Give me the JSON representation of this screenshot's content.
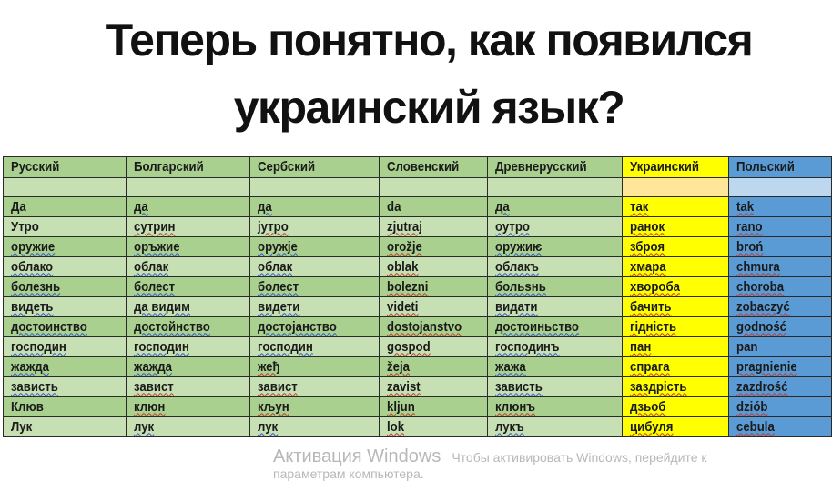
{
  "title": {
    "line1": "Теперь понятно, как появился",
    "line2": "украинский язык?"
  },
  "colors": {
    "green_dark": "#a9d08e",
    "green_light": "#c6e0b4",
    "yellow": "#ffff00",
    "yellow_light": "#ffe699",
    "blue": "#5b9bd5",
    "blue_light": "#bdd7ee"
  },
  "table": {
    "headers": [
      "Русский",
      "Болгарский",
      "Сербский",
      "Словенский",
      "Древнерусский",
      "Украинский",
      "Польский"
    ],
    "rows": [
      [
        "Да",
        "да",
        "да",
        "da",
        "да",
        "так",
        "tak"
      ],
      [
        "Утро",
        "сутрин",
        "јутро",
        "zjutraj",
        "оутро",
        "ранок",
        "rano"
      ],
      [
        "оружие",
        "оръжие",
        "оружје",
        "orožje",
        "оружиѥ",
        "зброя",
        "broń"
      ],
      [
        "облако",
        "облак",
        "облак",
        "oblak",
        "облакъ",
        "хмара",
        "chmura"
      ],
      [
        "болезнь",
        "болест",
        "болест",
        "bolezni",
        "больѕнь",
        "хвороба",
        "choroba"
      ],
      [
        "видеть",
        "да видим",
        "видети",
        "videti",
        "видати",
        "бачить",
        "zobaczyć"
      ],
      [
        "достоинство",
        "достойнство",
        "достојанство",
        "dostojanstvo",
        "достоиньство",
        "гідність",
        "godność"
      ],
      [
        "господин",
        "господин",
        "господин",
        "gospod",
        "господинъ",
        "пан",
        "pan"
      ],
      [
        "жажда",
        "жажда",
        "жеђ",
        "žeja",
        "жажа",
        "спрага",
        "pragnienie"
      ],
      [
        "зависть",
        "завист",
        "завист",
        "zavist",
        "зависть",
        "заздрість",
        "zazdrość"
      ],
      [
        "Клюв",
        "клюн",
        "кљун",
        "kljun",
        "клюнъ",
        "дзьоб",
        "dziób"
      ],
      [
        "Лук",
        "лук",
        "лук",
        "lok",
        "лукъ",
        "цибуля",
        "cebula"
      ]
    ]
  },
  "watermark": {
    "line1": "Активация Windows",
    "line2": "Чтобы активировать Windows, перейдите к",
    "line3": "параметрам компьютера."
  }
}
